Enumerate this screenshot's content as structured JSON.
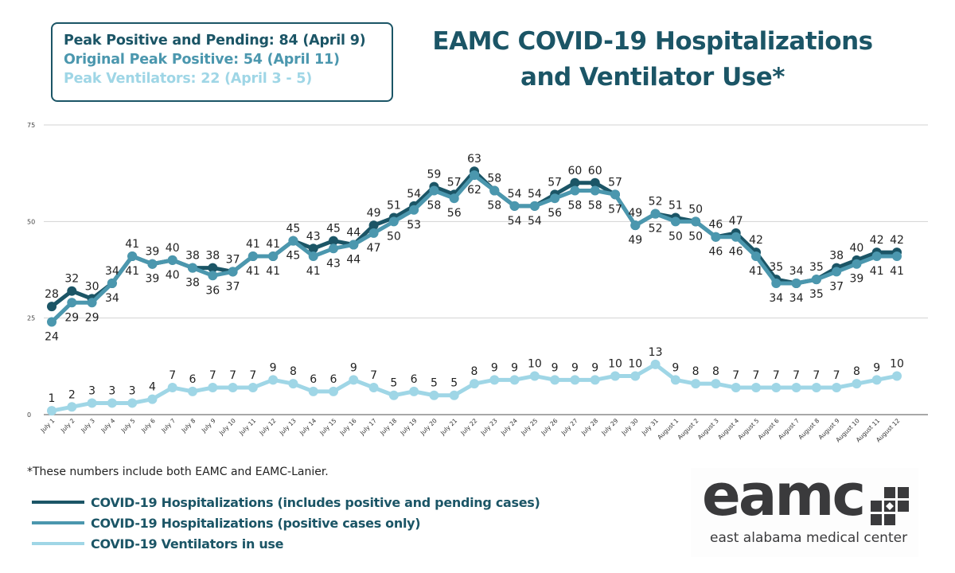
{
  "peaks": {
    "lines": [
      {
        "text": "Peak Positive and Pending: 84 (April 9)",
        "color": "#1b5566"
      },
      {
        "text": "Original Peak Positive: 54 (April 11)",
        "color": "#4b97ae"
      },
      {
        "text": "Peak Ventilators: 22 (April 3 - 5)",
        "color": "#9fd6e6"
      }
    ]
  },
  "title": {
    "line1": "EAMC COVID-19 Hospitalizations",
    "line2": "and Ventilator Use*"
  },
  "footnote": "*These numbers include both EAMC and EAMC-Lanier.",
  "legend": [
    {
      "label": "COVID-19 Hospitalizations (includes positive and pending cases)",
      "color": "#1b5566"
    },
    {
      "label": "COVID-19 Hospitalizations (positive cases only)",
      "color": "#4b97ae"
    },
    {
      "label": "COVID-19 Ventilators in use",
      "color": "#9fd6e6"
    }
  ],
  "logo": {
    "wordmark": "eamc",
    "subtitle": "east alabama medical center",
    "mark_icon": "cross-grid-icon"
  },
  "chart_data": {
    "type": "line",
    "title": "EAMC COVID-19 Hospitalizations and Ventilator Use*",
    "xlabel": "",
    "ylabel": "",
    "ylim": [
      0,
      75
    ],
    "yticks": [
      0,
      25,
      50,
      75
    ],
    "grid": true,
    "legend_position": "bottom-left",
    "x": [
      "July 1",
      "July 2",
      "July 3",
      "July 4",
      "July 5",
      "July 6",
      "July 7",
      "July 8",
      "July 9",
      "July 10",
      "July 11",
      "July 12",
      "July 13",
      "July 14",
      "July 15",
      "July 16",
      "July 17",
      "July 18",
      "July 19",
      "July 20",
      "July 21",
      "July 22",
      "July 23",
      "July 24",
      "July 25",
      "July 26",
      "July 27",
      "July 28",
      "July 29",
      "July 30",
      "July 31",
      "August 1",
      "August 2",
      "August 3",
      "August 4",
      "August 5",
      "August 6",
      "August 7",
      "August 8",
      "August 9",
      "August 10",
      "August 11",
      "August 12"
    ],
    "series": [
      {
        "name": "COVID-19 Hospitalizations (includes positive and pending cases)",
        "color": "#1b5566",
        "label_position": "above",
        "values": [
          28,
          32,
          30,
          34,
          41,
          39,
          40,
          38,
          38,
          37,
          41,
          41,
          45,
          43,
          45,
          44,
          49,
          51,
          54,
          59,
          57,
          63,
          58,
          54,
          54,
          57,
          60,
          60,
          57,
          49,
          52,
          51,
          50,
          46,
          47,
          42,
          35,
          34,
          35,
          38,
          40,
          42,
          42
        ]
      },
      {
        "name": "COVID-19 Hospitalizations (positive cases only)",
        "color": "#4b97ae",
        "label_position": "below",
        "values": [
          24,
          29,
          29,
          34,
          41,
          39,
          40,
          38,
          36,
          37,
          41,
          41,
          45,
          41,
          43,
          44,
          47,
          50,
          53,
          58,
          56,
          62,
          58,
          54,
          54,
          56,
          58,
          58,
          57,
          49,
          52,
          50,
          50,
          46,
          46,
          41,
          34,
          34,
          35,
          37,
          39,
          41,
          41
        ]
      },
      {
        "name": "COVID-19 Ventilators in use",
        "color": "#9fd6e6",
        "label_position": "above",
        "values": [
          1,
          2,
          3,
          3,
          3,
          4,
          7,
          6,
          7,
          7,
          7,
          9,
          8,
          6,
          6,
          9,
          7,
          5,
          6,
          5,
          5,
          8,
          9,
          9,
          10,
          9,
          9,
          9,
          10,
          10,
          13,
          9,
          8,
          8,
          7,
          7,
          7,
          7,
          7,
          7,
          8,
          9,
          10
        ]
      }
    ]
  }
}
